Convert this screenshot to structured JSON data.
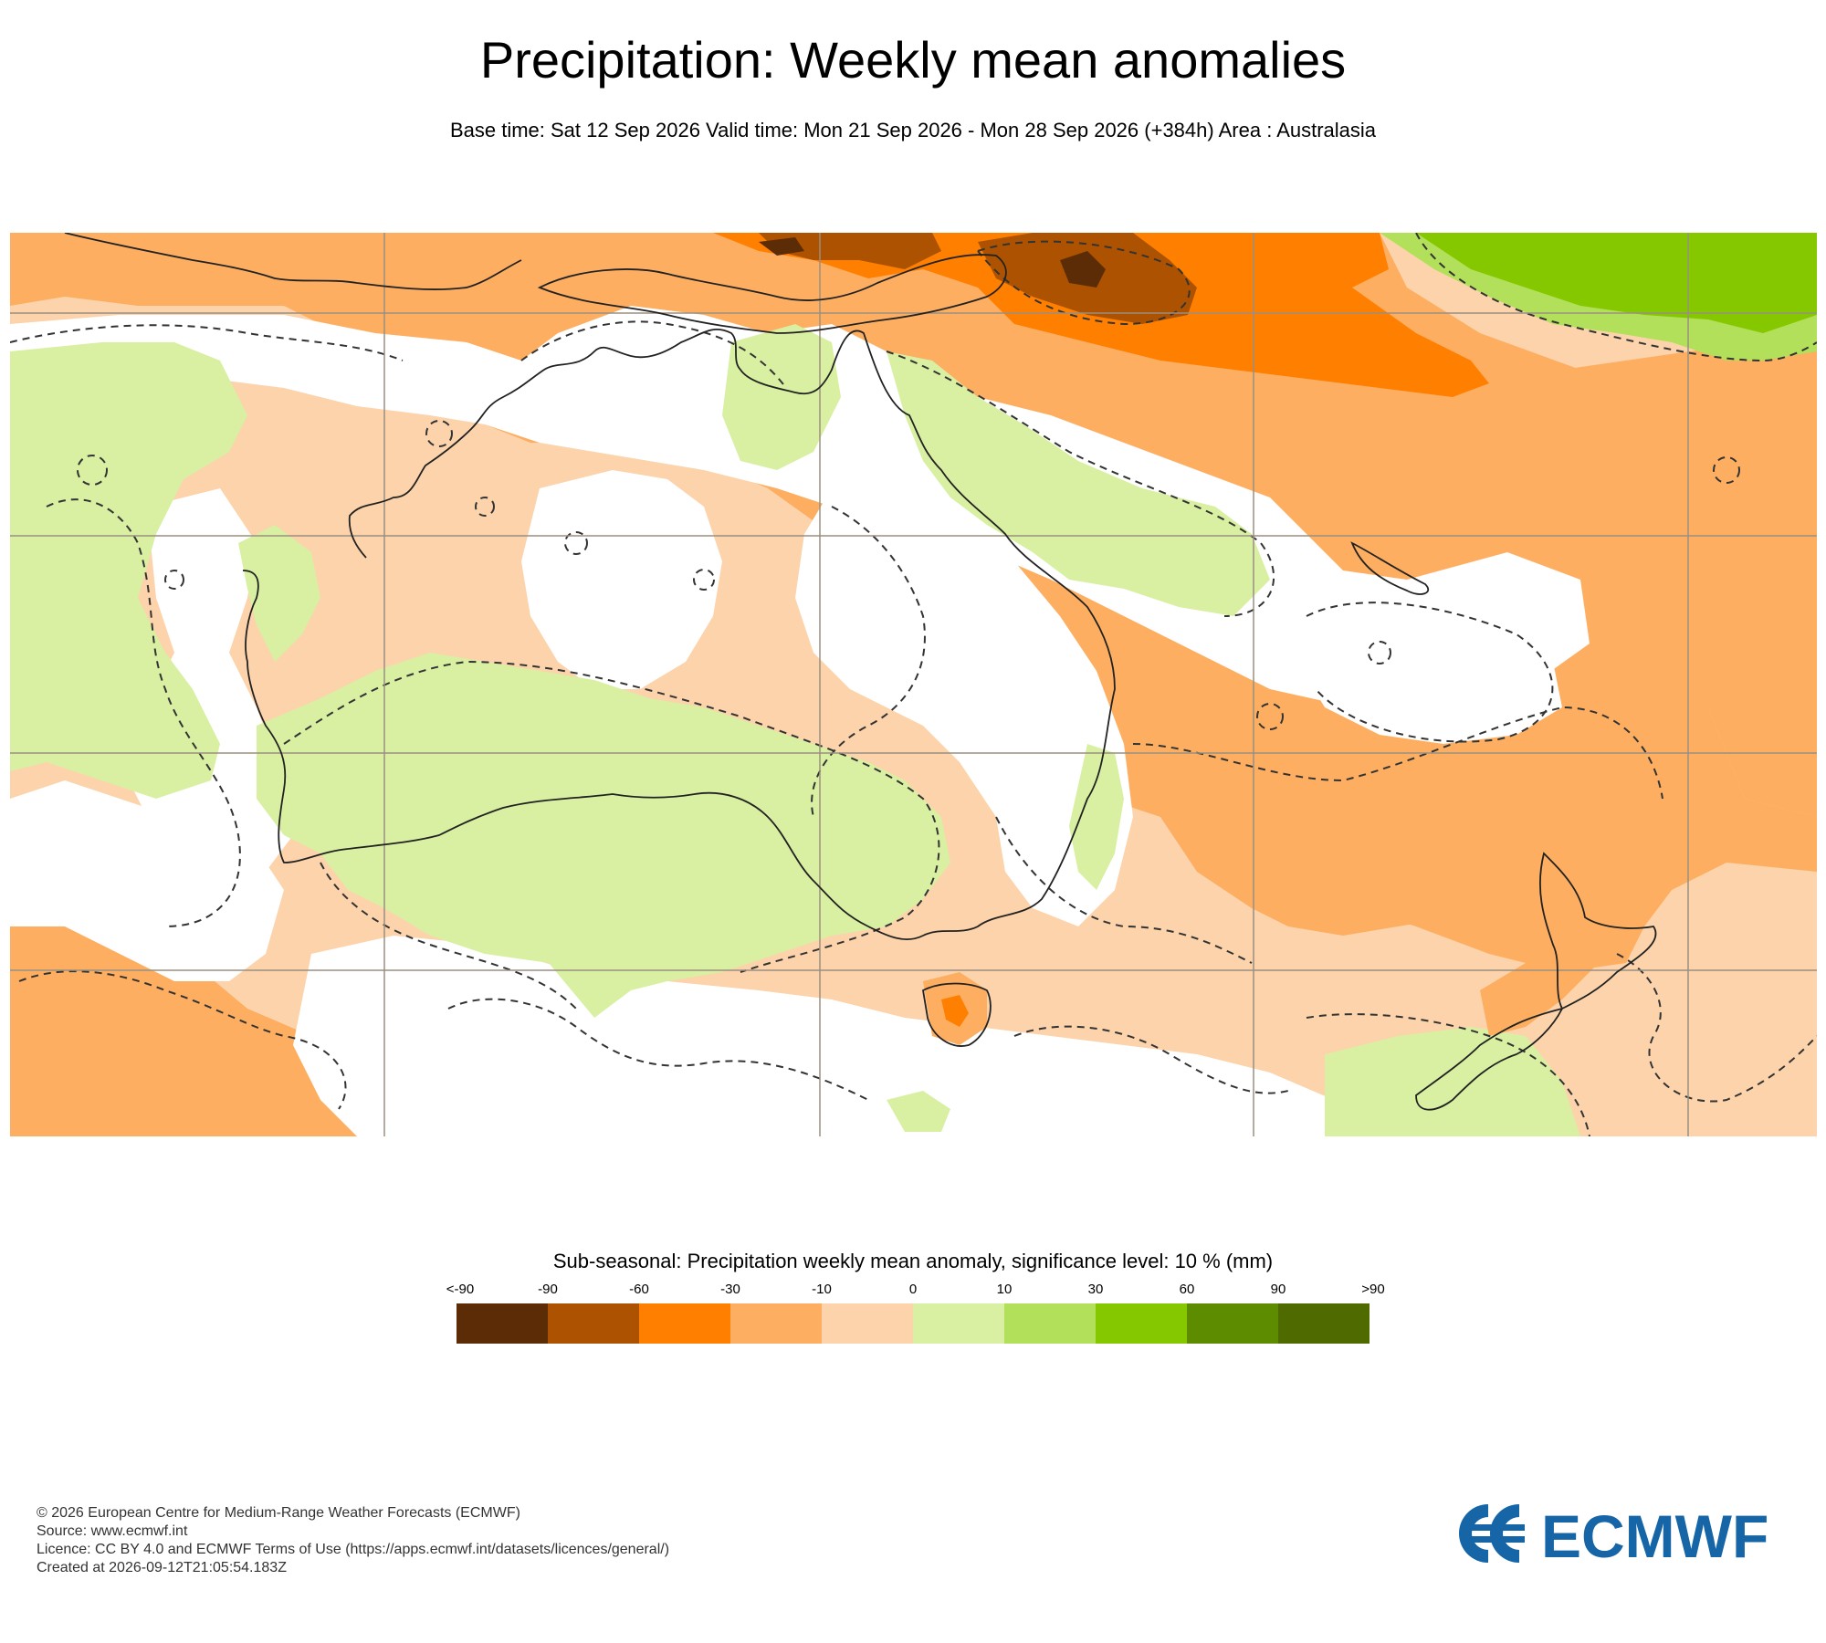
{
  "title": "Precipitation: Weekly mean anomalies",
  "subtitle": "Base time: Sat 12 Sep 2026 Valid time: Mon 21 Sep 2026 - Mon 28 Sep 2026 (+384h) Area : Australasia",
  "legend": {
    "title": "Sub-seasonal: Precipitation weekly mean anomaly, significance level: 10 % (mm)",
    "labels": [
      "<-90",
      "-90",
      "-60",
      "-30",
      "-10",
      "0",
      "10",
      "30",
      "60",
      "90",
      ">90"
    ],
    "colors": [
      "#5c2c06",
      "#ad5200",
      "#ff7f00",
      "#fdae61",
      "#fcd3aa",
      "#d9f0a3",
      "#b2e05a",
      "#85c800",
      "#5e8c00",
      "#4f6b00"
    ]
  },
  "footer": {
    "copyright": "© 2026 European Centre for Medium-Range Weather Forecasts (ECMWF)",
    "source": "Source: www.ecmwf.int",
    "licence": "Licence: CC BY 4.0 and ECMWF Terms of Use (https://apps.ecmwf.int/datasets/licences/general/)",
    "created": "Created at 2026-09-12T21:05:54.183Z"
  },
  "logo": {
    "text": "ECMWF",
    "color": "#1565a7"
  }
}
